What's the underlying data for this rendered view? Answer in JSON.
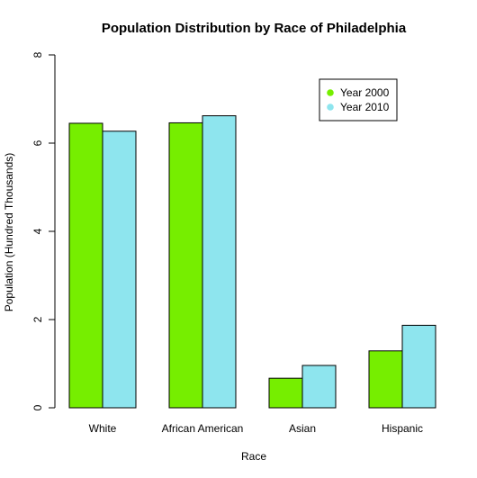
{
  "chart_data": {
    "type": "bar",
    "title": "Population Distribution by Race of Philadelphia",
    "xlabel": "Race",
    "ylabel": "Population (Hundred Thousands)",
    "categories": [
      "White",
      "African American",
      "Asian",
      "Hispanic"
    ],
    "series": [
      {
        "name": "Year 2000",
        "color": "#76ee00",
        "values": [
          6.45,
          6.46,
          0.67,
          1.29
        ]
      },
      {
        "name": "Year 2010",
        "color": "#8ee5ee",
        "values": [
          6.27,
          6.62,
          0.96,
          1.87
        ]
      }
    ],
    "ylim": [
      0,
      8
    ],
    "yticks": [
      0,
      2,
      4,
      6,
      8
    ],
    "grid": false,
    "legend_position": "top-right"
  }
}
